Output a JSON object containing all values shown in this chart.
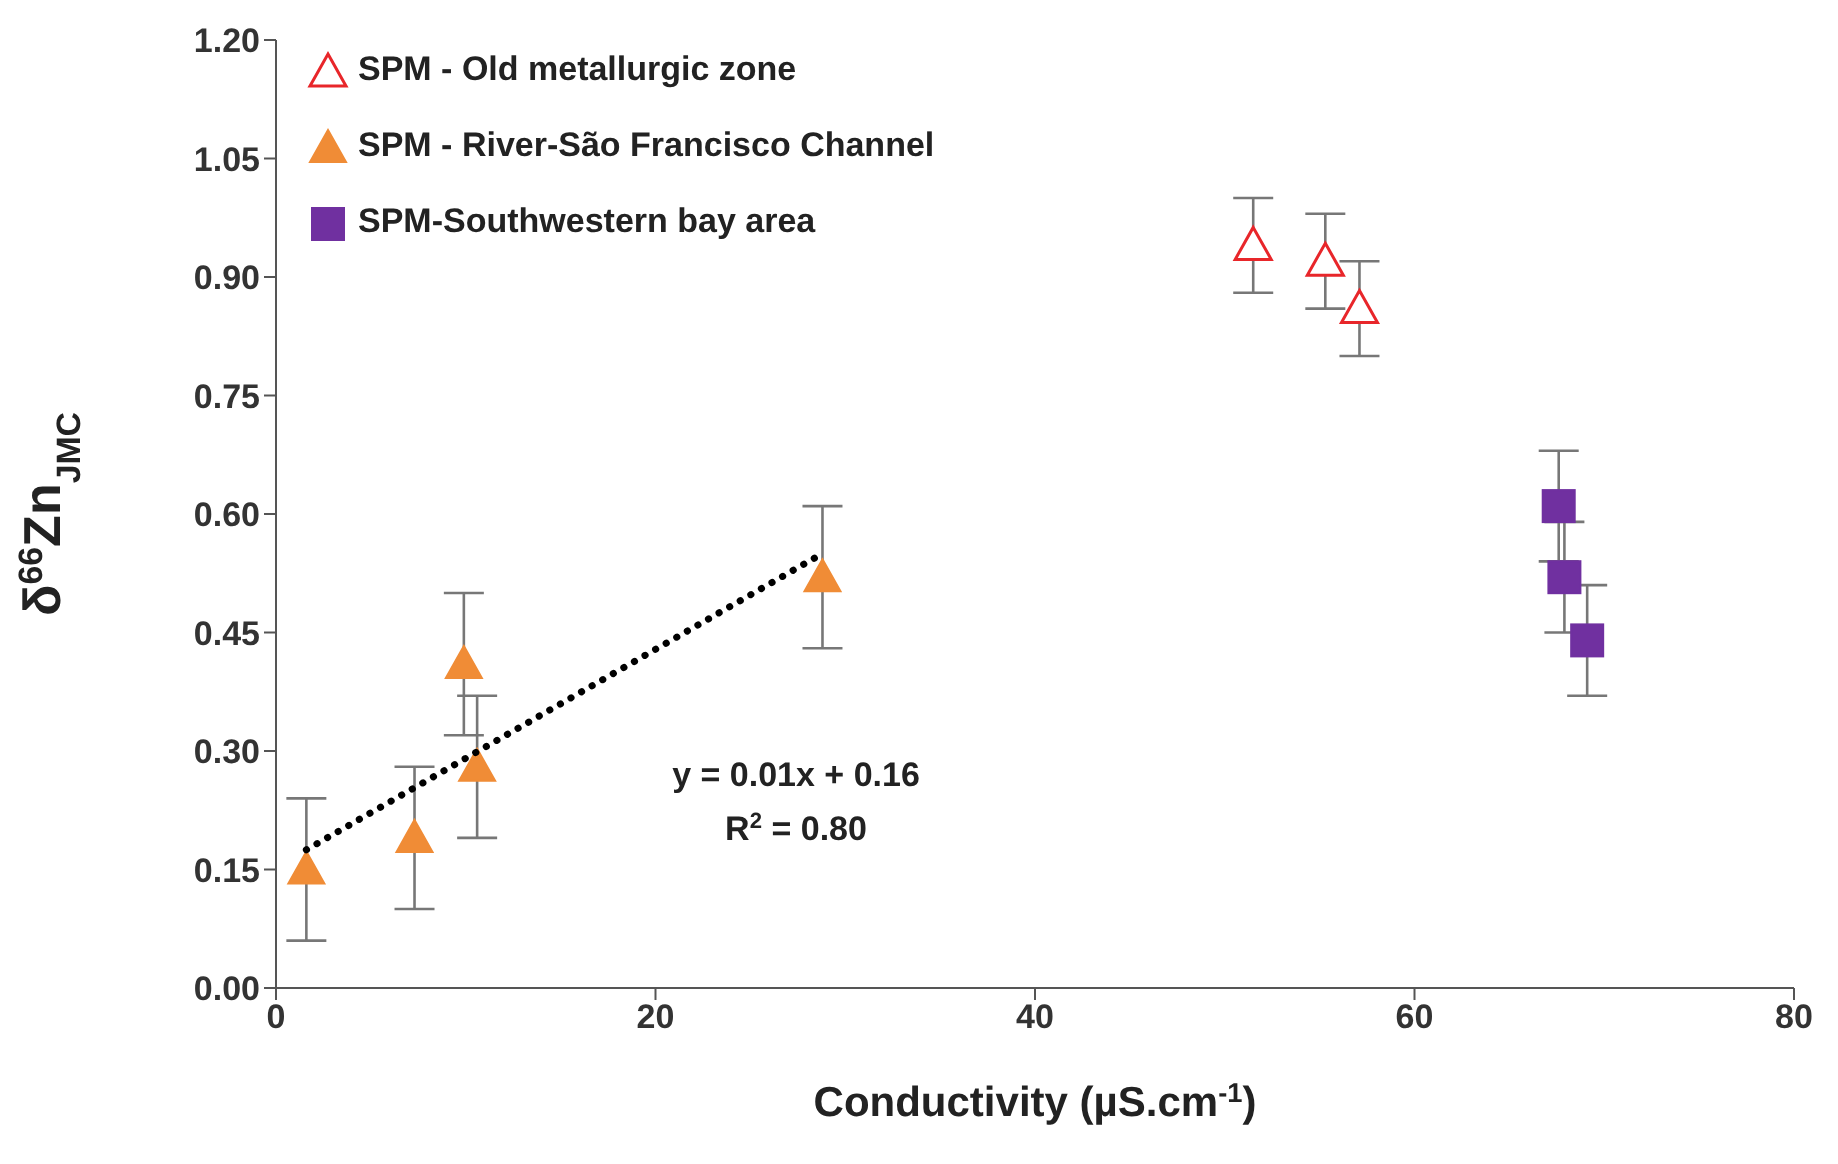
{
  "chart_data": {
    "type": "scatter",
    "xlabel": "Conductivity (µS.cm$^{-1}$)",
    "ylabel": "δ$^{66}$Zn$_{JMC}$",
    "xlim": [
      0,
      80
    ],
    "xticks": [
      0,
      20,
      40,
      60,
      80
    ],
    "ylim": [
      0,
      1.2
    ],
    "yticks": [
      {
        "value": 0,
        "label": "0.00"
      },
      {
        "value": 0.15,
        "label": "0.15"
      },
      {
        "value": 0.3,
        "label": "0.30"
      },
      {
        "value": 0.45,
        "label": "0.45"
      },
      {
        "value": 0.6,
        "label": "0.60"
      },
      {
        "value": 0.75,
        "label": "0.75"
      },
      {
        "value": 0.9,
        "label": "0.90"
      },
      {
        "value": 1.05,
        "label": "1.05"
      },
      {
        "value": 1.2,
        "label": "1.20"
      }
    ],
    "grid": false,
    "legend": "top left",
    "annotations": [
      "y = 0.01x + 0.16",
      "R$^{2}$ = 0.80"
    ],
    "series": [
      {
        "name": "SPM - Old metallurgic zone",
        "marker": "triangle-open",
        "color": "#e8262a",
        "x": [
          51.5,
          55.3,
          57.1
        ],
        "values": [
          0.94,
          0.92,
          0.86
        ],
        "errors": [
          0.06,
          0.06,
          0.06
        ]
      },
      {
        "name": "SPM - River-São Francisco Channel",
        "marker": "triangle",
        "color": "#f08c36",
        "x": [
          1.6,
          7.3,
          9.9,
          10.6,
          28.8
        ],
        "values": [
          0.15,
          0.19,
          0.41,
          0.28,
          0.52
        ],
        "errors": [
          0.09,
          0.09,
          0.09,
          0.09,
          0.09
        ]
      },
      {
        "name": "SPM-Southwestern bay area",
        "marker": "square",
        "color": "#7030a0",
        "x": [
          67.6,
          67.9,
          69.1
        ],
        "values": [
          0.61,
          0.52,
          0.44
        ],
        "errors": [
          0.07,
          0.07,
          0.07
        ]
      },
      {
        "type": "line",
        "marker": "none",
        "line_style": "dotted",
        "color": "#000000",
        "x": [
          1.6,
          28.8
        ],
        "values": [
          0.175,
          0.55
        ]
      }
    ]
  }
}
